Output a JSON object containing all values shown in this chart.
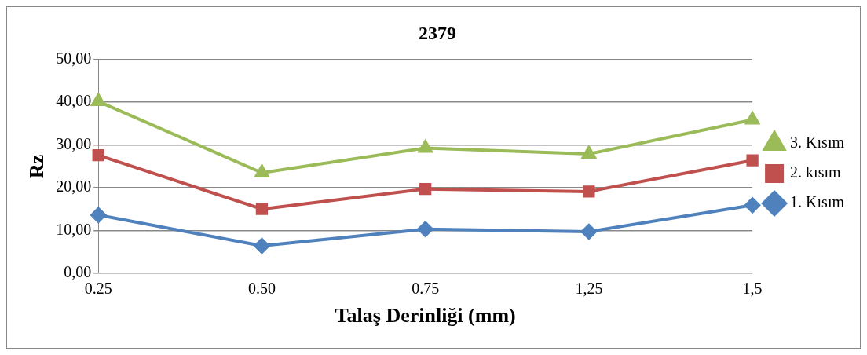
{
  "chart_data": {
    "type": "line",
    "title": "2379",
    "xlabel": "Talaş Derinliği (mm)",
    "ylabel": "Rz",
    "categories": [
      "0.25",
      "0.50",
      "0.75",
      "1,25",
      "1,5"
    ],
    "series": [
      {
        "name": "3. Kısım",
        "color": "#9bbb59",
        "marker": "triangle",
        "values": [
          40.2,
          23.5,
          29.3,
          27.9,
          35.9
        ]
      },
      {
        "name": "2. kısım",
        "color": "#c0504d",
        "marker": "square",
        "values": [
          27.6,
          15.0,
          19.7,
          19.1,
          26.4
        ]
      },
      {
        "name": "1. Kısım",
        "color": "#4f81bd",
        "marker": "diamond",
        "values": [
          13.6,
          6.4,
          10.3,
          9.7,
          15.9
        ]
      }
    ],
    "ylim": [
      0,
      50
    ],
    "yticks": [
      {
        "value": 0,
        "label": "0,00"
      },
      {
        "value": 10,
        "label": "10,00"
      },
      {
        "value": 20,
        "label": "20,00"
      },
      {
        "value": 30,
        "label": "30,00"
      },
      {
        "value": 40,
        "label": "40,00"
      },
      {
        "value": 50,
        "label": "50,00"
      }
    ],
    "grid": "y",
    "legend": "right",
    "line_style": "solid"
  }
}
